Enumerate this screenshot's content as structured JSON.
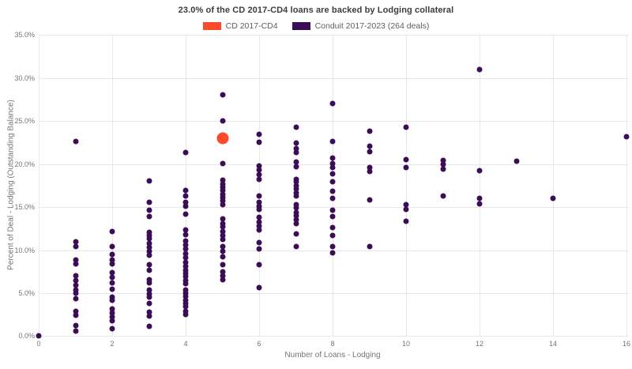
{
  "header": {
    "title": "23.0% of the CD 2017-CD4 loans are backed by Lodging collateral"
  },
  "legend": {
    "items": [
      {
        "label": "CD 2017-CD4",
        "color": "#fa4b2c"
      },
      {
        "label": "Conduit 2017-2023 (264 deals)",
        "color": "#3a0d55"
      }
    ]
  },
  "colors": {
    "background": "#ffffff",
    "gridline": "#e8e8e8",
    "tick_text": "#757575",
    "title_text": "#3d3d3d",
    "cd_orange": "#fa4b2c",
    "conduit_purple": "#3a0d55"
  },
  "chart_data": {
    "type": "scatter",
    "title": "23.0% of the CD 2017-CD4 loans are backed by Lodging collateral",
    "xlabel": "Number of Loans - Lodging",
    "ylabel": "Percent of Deal - Lodging (Outstanding Balance)",
    "xlim": [
      0,
      16
    ],
    "ylim": [
      0,
      35
    ],
    "x_ticks": [
      0,
      2,
      4,
      6,
      8,
      10,
      12,
      14,
      16
    ],
    "y_ticks": [
      {
        "value": 0,
        "label": "0.0%"
      },
      {
        "value": 5,
        "label": "5.0%"
      },
      {
        "value": 10,
        "label": "10.0%"
      },
      {
        "value": 15,
        "label": "15.0%"
      },
      {
        "value": 20,
        "label": "20.0%"
      },
      {
        "value": 25,
        "label": "25.0%"
      },
      {
        "value": 30,
        "label": "30.0%"
      },
      {
        "value": 35,
        "label": "35.0%"
      }
    ],
    "grid": true,
    "legend_position": "top-center",
    "series": [
      {
        "name": "CD 2017-CD4",
        "color": "#fa4b2c",
        "marker_diameter": 15,
        "points": [
          [
            5,
            23.0
          ]
        ]
      },
      {
        "name": "Conduit 2017-2023 (264 deals)",
        "color": "#3a0d55",
        "marker_diameter": 7,
        "points": [
          [
            0,
            0.0
          ],
          [
            1,
            22.6
          ],
          [
            1,
            11.0
          ],
          [
            1,
            10.4
          ],
          [
            1,
            8.9
          ],
          [
            1,
            8.4
          ],
          [
            1,
            7.0
          ],
          [
            1,
            6.5
          ],
          [
            1,
            5.9
          ],
          [
            1,
            5.4
          ],
          [
            1,
            5.0
          ],
          [
            1,
            4.4
          ],
          [
            1,
            2.9
          ],
          [
            1,
            2.4
          ],
          [
            1,
            1.2
          ],
          [
            1,
            0.6
          ],
          [
            2,
            12.2
          ],
          [
            2,
            10.4
          ],
          [
            2,
            9.5
          ],
          [
            2,
            8.9
          ],
          [
            2,
            8.4
          ],
          [
            2,
            7.4
          ],
          [
            2,
            6.8
          ],
          [
            2,
            6.2
          ],
          [
            2,
            5.5
          ],
          [
            2,
            4.5
          ],
          [
            2,
            4.2
          ],
          [
            2,
            3.2
          ],
          [
            2,
            2.7
          ],
          [
            2,
            2.2
          ],
          [
            2,
            1.8
          ],
          [
            2,
            0.9
          ],
          [
            3,
            18.0
          ],
          [
            3,
            15.6
          ],
          [
            3,
            14.6
          ],
          [
            3,
            13.9
          ],
          [
            3,
            12.1
          ],
          [
            3,
            11.7
          ],
          [
            3,
            11.3
          ],
          [
            3,
            10.8
          ],
          [
            3,
            10.3
          ],
          [
            3,
            9.9
          ],
          [
            3,
            9.4
          ],
          [
            3,
            8.3
          ],
          [
            3,
            7.7
          ],
          [
            3,
            6.6
          ],
          [
            3,
            6.2
          ],
          [
            3,
            5.4
          ],
          [
            3,
            4.9
          ],
          [
            3,
            4.5
          ],
          [
            3,
            3.8
          ],
          [
            3,
            2.8
          ],
          [
            3,
            2.3
          ],
          [
            3,
            1.1
          ],
          [
            4,
            21.3
          ],
          [
            4,
            16.9
          ],
          [
            4,
            16.3
          ],
          [
            4,
            15.6
          ],
          [
            4,
            15.1
          ],
          [
            4,
            14.2
          ],
          [
            4,
            12.3
          ],
          [
            4,
            11.8
          ],
          [
            4,
            11.1
          ],
          [
            4,
            10.6
          ],
          [
            4,
            10.1
          ],
          [
            4,
            9.6
          ],
          [
            4,
            9.1
          ],
          [
            4,
            8.6
          ],
          [
            4,
            8.1
          ],
          [
            4,
            7.7
          ],
          [
            4,
            7.3
          ],
          [
            4,
            6.9
          ],
          [
            4,
            6.5
          ],
          [
            4,
            6.1
          ],
          [
            4,
            5.4
          ],
          [
            4,
            5.0
          ],
          [
            4,
            4.6
          ],
          [
            4,
            4.2
          ],
          [
            4,
            3.8
          ],
          [
            4,
            3.4
          ],
          [
            4,
            2.9
          ],
          [
            4,
            2.5
          ],
          [
            5,
            28.0
          ],
          [
            5,
            25.0
          ],
          [
            5,
            20.1
          ],
          [
            5,
            18.1
          ],
          [
            5,
            17.7
          ],
          [
            5,
            17.3
          ],
          [
            5,
            16.9
          ],
          [
            5,
            16.5
          ],
          [
            5,
            16.1
          ],
          [
            5,
            15.7
          ],
          [
            5,
            15.3
          ],
          [
            5,
            13.6
          ],
          [
            5,
            13.1
          ],
          [
            5,
            12.7
          ],
          [
            5,
            12.2
          ],
          [
            5,
            11.7
          ],
          [
            5,
            11.2
          ],
          [
            5,
            10.4
          ],
          [
            5,
            9.9
          ],
          [
            5,
            9.2
          ],
          [
            5,
            8.3
          ],
          [
            5,
            7.5
          ],
          [
            5,
            7.0
          ],
          [
            5,
            6.6
          ],
          [
            6,
            23.5
          ],
          [
            6,
            22.5
          ],
          [
            6,
            19.8
          ],
          [
            6,
            19.3
          ],
          [
            6,
            18.8
          ],
          [
            6,
            18.2
          ],
          [
            6,
            16.3
          ],
          [
            6,
            15.6
          ],
          [
            6,
            15.1
          ],
          [
            6,
            14.7
          ],
          [
            6,
            13.8
          ],
          [
            6,
            13.3
          ],
          [
            6,
            12.8
          ],
          [
            6,
            12.3
          ],
          [
            6,
            10.9
          ],
          [
            6,
            10.1
          ],
          [
            6,
            8.3
          ],
          [
            6,
            5.6
          ],
          [
            7,
            24.3
          ],
          [
            7,
            22.4
          ],
          [
            7,
            21.8
          ],
          [
            7,
            21.3
          ],
          [
            7,
            20.2
          ],
          [
            7,
            19.7
          ],
          [
            7,
            18.2
          ],
          [
            7,
            17.9
          ],
          [
            7,
            17.5
          ],
          [
            7,
            17.1
          ],
          [
            7,
            16.7
          ],
          [
            7,
            16.3
          ],
          [
            7,
            15.3
          ],
          [
            7,
            14.9
          ],
          [
            7,
            14.4
          ],
          [
            7,
            14.0
          ],
          [
            7,
            13.5
          ],
          [
            7,
            13.1
          ],
          [
            7,
            11.9
          ],
          [
            7,
            10.4
          ],
          [
            8,
            27.0
          ],
          [
            8,
            22.6
          ],
          [
            8,
            20.7
          ],
          [
            8,
            20.1
          ],
          [
            8,
            19.6
          ],
          [
            8,
            18.9
          ],
          [
            8,
            17.9
          ],
          [
            8,
            16.8
          ],
          [
            8,
            16.0
          ],
          [
            8,
            14.6
          ],
          [
            8,
            13.9
          ],
          [
            8,
            12.6
          ],
          [
            8,
            11.7
          ],
          [
            8,
            10.4
          ],
          [
            8,
            9.7
          ],
          [
            9,
            23.8
          ],
          [
            9,
            22.1
          ],
          [
            9,
            21.4
          ],
          [
            9,
            19.6
          ],
          [
            9,
            19.1
          ],
          [
            9,
            15.8
          ],
          [
            9,
            10.4
          ],
          [
            10,
            24.3
          ],
          [
            10,
            20.5
          ],
          [
            10,
            19.6
          ],
          [
            10,
            15.3
          ],
          [
            10,
            14.7
          ],
          [
            10,
            13.4
          ],
          [
            11,
            20.4
          ],
          [
            11,
            20.0
          ],
          [
            11,
            19.4
          ],
          [
            11,
            16.3
          ],
          [
            12,
            31.0
          ],
          [
            12,
            19.2
          ],
          [
            12,
            16.0
          ],
          [
            12,
            15.4
          ],
          [
            13,
            20.3
          ],
          [
            14,
            16.0
          ],
          [
            16,
            23.2
          ]
        ]
      }
    ]
  }
}
